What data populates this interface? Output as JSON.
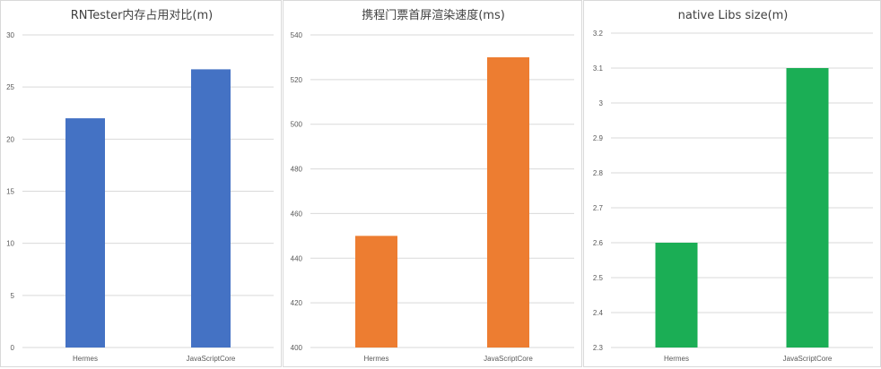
{
  "chart_data": [
    {
      "type": "bar",
      "title": "RNTester内存占用对比(m)",
      "categories": [
        "Hermes",
        "JavaScriptCore"
      ],
      "values": [
        22,
        26.7
      ],
      "ylim": [
        0,
        30
      ],
      "yticks": [
        0,
        5,
        10,
        15,
        20,
        25,
        30
      ],
      "color": "#4472C4",
      "grid": true,
      "legend": "none"
    },
    {
      "type": "bar",
      "title": "携程门票首屏渲染速度(ms)",
      "categories": [
        "Hermes",
        "JavaScriptCore"
      ],
      "values": [
        450,
        530
      ],
      "ylim": [
        400,
        540
      ],
      "yticks": [
        400,
        420,
        440,
        460,
        480,
        500,
        520,
        540
      ],
      "color": "#ED7D31",
      "grid": true,
      "legend": "none"
    },
    {
      "type": "bar",
      "title": "native Libs size(m)",
      "categories": [
        "Hermes",
        "JavaScriptCore"
      ],
      "values": [
        2.6,
        3.1
      ],
      "ylim": [
        2.3,
        3.2
      ],
      "yticks": [
        "2.3",
        "2.4",
        "2.5",
        "2.6",
        "2.7",
        "2.8",
        "2.9",
        "3",
        "3.1",
        "3.2"
      ],
      "color": "#1BAE55",
      "grid": true,
      "legend": "none"
    }
  ]
}
